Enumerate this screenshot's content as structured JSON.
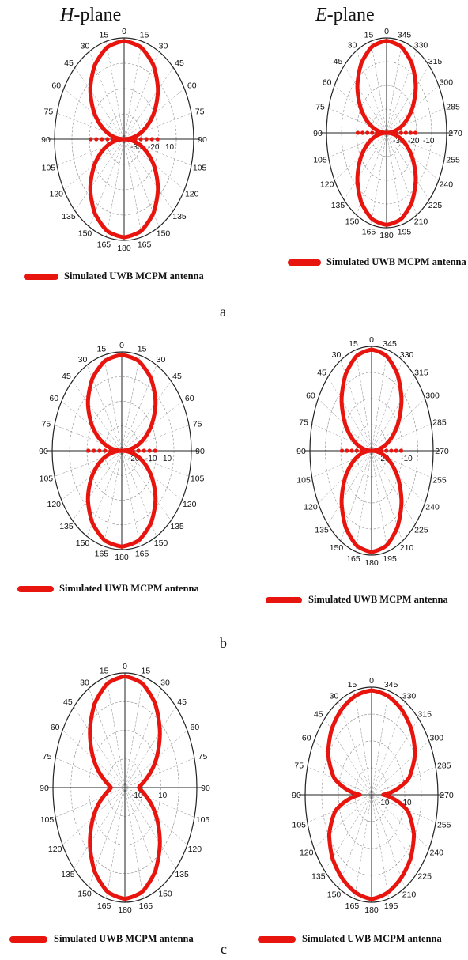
{
  "headers": {
    "h_plane_letter": "H",
    "h_plane_suffix": "-plane",
    "e_plane_letter": "E",
    "e_plane_suffix": "-plane"
  },
  "legend_label": "Simulated UWB MCPM antenna",
  "subfigure_labels": [
    "a",
    "b",
    "c"
  ],
  "colors": {
    "trace": "#e8150f",
    "axes": "#222222",
    "grid": "#888888"
  },
  "chart_data": [
    {
      "type": "polar",
      "plane": "H-plane",
      "subfigure": "a",
      "angle_labels": [
        "0",
        "15",
        "30",
        "45",
        "60",
        "75",
        "90",
        "105",
        "120",
        "135",
        "150",
        "165",
        "180",
        "165",
        "150",
        "135",
        "120",
        "105",
        "90",
        "75",
        "60",
        "45",
        "30",
        "15"
      ],
      "radial_labels": [
        "-30",
        "-20",
        "10"
      ],
      "series": [
        {
          "theta_deg": [
            0,
            15,
            30,
            45,
            60,
            75,
            85,
            90,
            95,
            105,
            120,
            135,
            150,
            165,
            180
          ],
          "value_norm": [
            1.0,
            0.97,
            0.87,
            0.71,
            0.5,
            0.26,
            0.09,
            0.0,
            0.09,
            0.26,
            0.5,
            0.71,
            0.87,
            0.97,
            1.0
          ]
        }
      ]
    },
    {
      "type": "polar",
      "plane": "E-plane",
      "subfigure": "a",
      "angle_labels": [
        "0",
        "345",
        "330",
        "315",
        "300",
        "285",
        "270",
        "255",
        "240",
        "225",
        "210",
        "195",
        "180",
        "165",
        "150",
        "135",
        "120",
        "105",
        "90",
        "75",
        "60",
        "45",
        "30",
        "15"
      ],
      "radial_labels": [
        "-30",
        "-20",
        "-10"
      ],
      "series": [
        {
          "theta_deg": [
            0,
            15,
            30,
            45,
            60,
            75,
            85,
            90,
            95,
            105,
            120,
            135,
            150,
            165,
            180
          ],
          "value_norm": [
            1.0,
            0.97,
            0.87,
            0.71,
            0.5,
            0.26,
            0.09,
            0.0,
            0.09,
            0.26,
            0.5,
            0.71,
            0.87,
            0.97,
            1.0
          ]
        }
      ]
    },
    {
      "type": "polar",
      "plane": "H-plane",
      "subfigure": "b",
      "angle_labels": [
        "0",
        "15",
        "30",
        "45",
        "60",
        "75",
        "90",
        "105",
        "120",
        "135",
        "150",
        "165",
        "180",
        "165",
        "150",
        "135",
        "120",
        "105",
        "90",
        "75",
        "60",
        "45",
        "30",
        "15"
      ],
      "radial_labels": [
        "-20",
        "-10",
        "10"
      ],
      "series": [
        {
          "theta_deg": [
            0,
            15,
            30,
            45,
            60,
            75,
            85,
            90,
            95,
            105,
            120,
            135,
            150,
            165,
            180
          ],
          "value_norm": [
            1.0,
            0.97,
            0.87,
            0.71,
            0.5,
            0.26,
            0.09,
            0.0,
            0.09,
            0.26,
            0.5,
            0.71,
            0.87,
            0.97,
            1.0
          ]
        }
      ]
    },
    {
      "type": "polar",
      "plane": "E-plane",
      "subfigure": "b",
      "angle_labels": [
        "0",
        "345",
        "330",
        "315",
        "300",
        "285",
        "270",
        "255",
        "240",
        "225",
        "210",
        "195",
        "180",
        "165",
        "150",
        "135",
        "120",
        "105",
        "90",
        "75",
        "60",
        "45",
        "30",
        "15"
      ],
      "radial_labels": [
        "-20",
        "-10"
      ],
      "series": [
        {
          "theta_deg": [
            0,
            15,
            30,
            45,
            60,
            75,
            85,
            90,
            95,
            105,
            120,
            135,
            150,
            165,
            180
          ],
          "value_norm": [
            1.0,
            0.97,
            0.87,
            0.71,
            0.5,
            0.26,
            0.09,
            0.0,
            0.09,
            0.26,
            0.5,
            0.71,
            0.87,
            0.97,
            1.0
          ]
        }
      ]
    },
    {
      "type": "polar",
      "plane": "H-plane",
      "subfigure": "c",
      "angle_labels": [
        "0",
        "15",
        "30",
        "45",
        "60",
        "75",
        "90",
        "105",
        "120",
        "135",
        "150",
        "165",
        "180",
        "165",
        "150",
        "135",
        "120",
        "105",
        "90",
        "75",
        "60",
        "45",
        "30",
        "15"
      ],
      "radial_labels": [
        "-10",
        "10"
      ],
      "series": [
        {
          "theta_deg": [
            0,
            15,
            30,
            45,
            60,
            75,
            85,
            90,
            95,
            105,
            120,
            135,
            150,
            165,
            180
          ],
          "value_norm": [
            1.0,
            0.97,
            0.87,
            0.71,
            0.52,
            0.32,
            0.22,
            0.2,
            0.22,
            0.32,
            0.52,
            0.71,
            0.87,
            0.97,
            1.0
          ]
        }
      ]
    },
    {
      "type": "polar",
      "plane": "E-plane",
      "subfigure": "c",
      "angle_labels": [
        "0",
        "345",
        "330",
        "315",
        "300",
        "285",
        "270",
        "255",
        "240",
        "225",
        "210",
        "195",
        "180",
        "165",
        "150",
        "135",
        "120",
        "105",
        "90",
        "75",
        "60",
        "45",
        "30",
        "15"
      ],
      "radial_labels": [
        "-10",
        "10"
      ],
      "series": [
        {
          "theta_deg": [
            0,
            15,
            30,
            45,
            60,
            75,
            85,
            90,
            95,
            105,
            120,
            135,
            150,
            165,
            180
          ],
          "value_norm": [
            1.0,
            0.98,
            0.94,
            0.88,
            0.78,
            0.6,
            0.32,
            0.18,
            0.3,
            0.58,
            0.76,
            0.86,
            0.92,
            0.97,
            1.0
          ]
        }
      ]
    }
  ]
}
